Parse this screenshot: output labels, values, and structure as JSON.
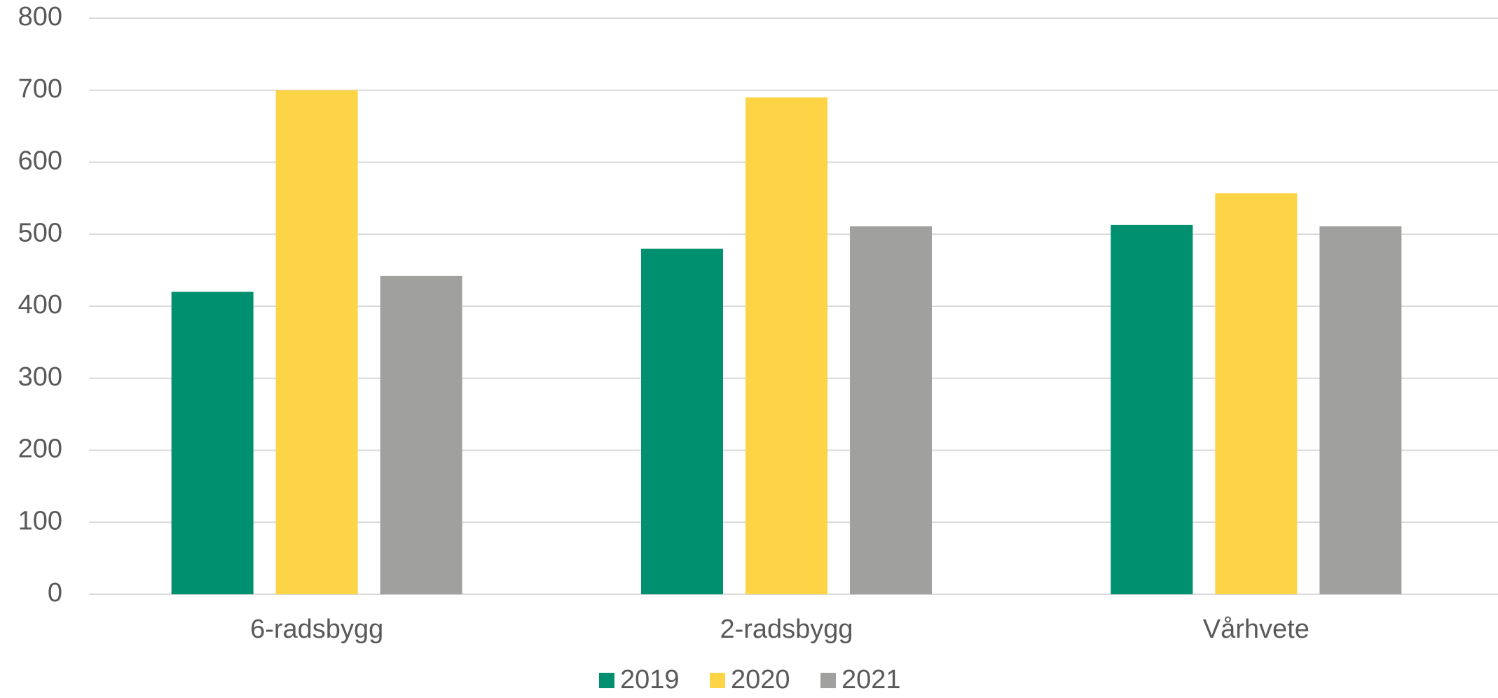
{
  "chart_data": {
    "type": "bar",
    "categories": [
      "6-radsbygg",
      "2-radsbygg",
      "Vårhvete"
    ],
    "series": [
      {
        "name": "2019",
        "color": "#008f6f",
        "values": [
          420,
          480,
          513
        ]
      },
      {
        "name": "2020",
        "color": "#fdd446",
        "values": [
          700,
          690,
          557
        ]
      },
      {
        "name": "2021",
        "color": "#a0a09f",
        "values": [
          442,
          511,
          511
        ]
      }
    ],
    "ylim": [
      0,
      800
    ],
    "yticks": [
      0,
      100,
      200,
      300,
      400,
      500,
      600,
      700,
      800
    ],
    "grid": true,
    "legend": "bottom"
  }
}
